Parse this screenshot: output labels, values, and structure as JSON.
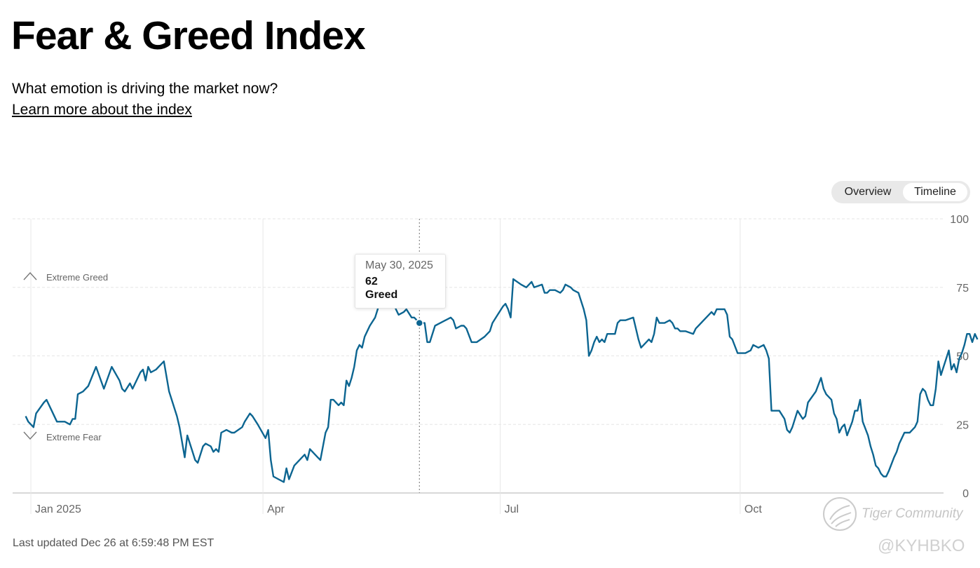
{
  "header": {
    "title": "Fear & Greed Index",
    "question": "What emotion is driving the market now?",
    "learn_link": "Learn more about the index"
  },
  "view_toggle": {
    "options": [
      "Overview",
      "Timeline"
    ],
    "selected": "Timeline"
  },
  "chart_data": {
    "type": "line",
    "title": "Fear & Greed Index",
    "xlabel": "",
    "ylabel": "",
    "ylim": [
      0,
      100
    ],
    "yticks": [
      0,
      25,
      50,
      75,
      100
    ],
    "x_range_days": [
      0,
      355
    ],
    "x_ticks": [
      {
        "label": "Jan 2025",
        "day": 0
      },
      {
        "label": "Apr",
        "day": 89
      },
      {
        "label": "Jul",
        "day": 180
      },
      {
        "label": "Oct",
        "day": 272
      }
    ],
    "zones": [
      {
        "label": "Extreme Greed",
        "icon": "chevron-up-icon"
      },
      {
        "label": "Extreme Fear",
        "icon": "chevron-down-icon"
      }
    ],
    "colors": {
      "line": "#0c6591",
      "grid": "#e6e6e6",
      "axis": "#cccccc",
      "text": "#666666"
    },
    "series": [
      {
        "name": "Fear & Greed Index",
        "points": [
          [
            -2,
            28
          ],
          [
            -1,
            26
          ],
          [
            1,
            24
          ],
          [
            2,
            29
          ],
          [
            5,
            33
          ],
          [
            6,
            34
          ],
          [
            8,
            30
          ],
          [
            10,
            26
          ],
          [
            13,
            26
          ],
          [
            15,
            25
          ],
          [
            16,
            27
          ],
          [
            17,
            27
          ],
          [
            18,
            36
          ],
          [
            20,
            37
          ],
          [
            22,
            39
          ],
          [
            25,
            46
          ],
          [
            28,
            38
          ],
          [
            31,
            46
          ],
          [
            34,
            41
          ],
          [
            35,
            38
          ],
          [
            36,
            37
          ],
          [
            38,
            40
          ],
          [
            39,
            38
          ],
          [
            42,
            44
          ],
          [
            43,
            45
          ],
          [
            44,
            41
          ],
          [
            45,
            46
          ],
          [
            46,
            44
          ],
          [
            48,
            45
          ],
          [
            49,
            46
          ],
          [
            51,
            48
          ],
          [
            53,
            37
          ],
          [
            56,
            28
          ],
          [
            57,
            24
          ],
          [
            59,
            13
          ],
          [
            60,
            21
          ],
          [
            62,
            15
          ],
          [
            63,
            12
          ],
          [
            64,
            11
          ],
          [
            66,
            17
          ],
          [
            67,
            18
          ],
          [
            69,
            17
          ],
          [
            70,
            15
          ],
          [
            71,
            16
          ],
          [
            72,
            15
          ],
          [
            73,
            22
          ],
          [
            75,
            23
          ],
          [
            77,
            22
          ],
          [
            78,
            22
          ],
          [
            81,
            24
          ],
          [
            82,
            26
          ],
          [
            84,
            29
          ],
          [
            85,
            28
          ],
          [
            87,
            25
          ],
          [
            90,
            20
          ],
          [
            91,
            23
          ],
          [
            92,
            12
          ],
          [
            93,
            6
          ],
          [
            95,
            5
          ],
          [
            97,
            4
          ],
          [
            98,
            9
          ],
          [
            99,
            5
          ],
          [
            101,
            10
          ],
          [
            104,
            13
          ],
          [
            105,
            14
          ],
          [
            106,
            12
          ],
          [
            107,
            16
          ],
          [
            110,
            13
          ],
          [
            111,
            12
          ],
          [
            113,
            22
          ],
          [
            114,
            24
          ],
          [
            115,
            34
          ],
          [
            116,
            34
          ],
          [
            117,
            33
          ],
          [
            118,
            32
          ],
          [
            119,
            33
          ],
          [
            120,
            32
          ],
          [
            121,
            41
          ],
          [
            122,
            39
          ],
          [
            123,
            42
          ],
          [
            124,
            46
          ],
          [
            125,
            52
          ],
          [
            126,
            54
          ],
          [
            127,
            53
          ],
          [
            128,
            57
          ],
          [
            129,
            59
          ],
          [
            130,
            61
          ],
          [
            132,
            64
          ],
          [
            133,
            67
          ],
          [
            134,
            72
          ],
          [
            136,
            73
          ],
          [
            138,
            70
          ],
          [
            139,
            70
          ],
          [
            140,
            67
          ],
          [
            141,
            65
          ],
          [
            143,
            66
          ],
          [
            144,
            67
          ],
          [
            146,
            64
          ],
          [
            147,
            64
          ],
          [
            148,
            63
          ],
          [
            149,
            62
          ],
          [
            151,
            62
          ],
          [
            152,
            55
          ],
          [
            153,
            55
          ],
          [
            155,
            61
          ],
          [
            157,
            62
          ],
          [
            159,
            63
          ],
          [
            161,
            64
          ],
          [
            162,
            63
          ],
          [
            163,
            60
          ],
          [
            165,
            61
          ],
          [
            166,
            61
          ],
          [
            167,
            60
          ],
          [
            169,
            55
          ],
          [
            171,
            55
          ],
          [
            174,
            57
          ],
          [
            176,
            59
          ],
          [
            177,
            62
          ],
          [
            179,
            65
          ],
          [
            181,
            68
          ],
          [
            182,
            69
          ],
          [
            183,
            67
          ],
          [
            184,
            64
          ],
          [
            185,
            78
          ],
          [
            188,
            76
          ],
          [
            190,
            75
          ],
          [
            192,
            77
          ],
          [
            193,
            75
          ],
          [
            196,
            76
          ],
          [
            197,
            73
          ],
          [
            198,
            73
          ],
          [
            199,
            74
          ],
          [
            201,
            74
          ],
          [
            203,
            73
          ],
          [
            204,
            74
          ],
          [
            205,
            76
          ],
          [
            207,
            75
          ],
          [
            208,
            74
          ],
          [
            210,
            73
          ],
          [
            212,
            67
          ],
          [
            213,
            63
          ],
          [
            214,
            50
          ],
          [
            215,
            52
          ],
          [
            216,
            55
          ],
          [
            217,
            57
          ],
          [
            218,
            55
          ],
          [
            219,
            56
          ],
          [
            220,
            55
          ],
          [
            221,
            58
          ],
          [
            223,
            58
          ],
          [
            224,
            58
          ],
          [
            225,
            62
          ],
          [
            226,
            63
          ],
          [
            228,
            63
          ],
          [
            231,
            64
          ],
          [
            232,
            60
          ],
          [
            233,
            56
          ],
          [
            234,
            53
          ],
          [
            236,
            55
          ],
          [
            237,
            56
          ],
          [
            238,
            55
          ],
          [
            239,
            58
          ],
          [
            240,
            64
          ],
          [
            241,
            62
          ],
          [
            243,
            62
          ],
          [
            245,
            63
          ],
          [
            246,
            62
          ],
          [
            247,
            60
          ],
          [
            248,
            60
          ],
          [
            249,
            59
          ],
          [
            251,
            59
          ],
          [
            254,
            58
          ],
          [
            255,
            60
          ],
          [
            256,
            61
          ],
          [
            258,
            63
          ],
          [
            260,
            65
          ],
          [
            261,
            66
          ],
          [
            262,
            65
          ],
          [
            263,
            67
          ],
          [
            265,
            67
          ],
          [
            266,
            67
          ],
          [
            267,
            65
          ],
          [
            268,
            57
          ],
          [
            269,
            56
          ],
          [
            271,
            51
          ],
          [
            272,
            51
          ],
          [
            274,
            51
          ],
          [
            276,
            52
          ],
          [
            277,
            54
          ],
          [
            279,
            53
          ],
          [
            281,
            54
          ],
          [
            282,
            52
          ],
          [
            283,
            49
          ],
          [
            284,
            30
          ],
          [
            285,
            30
          ],
          [
            287,
            30
          ],
          [
            289,
            27
          ],
          [
            290,
            23
          ],
          [
            291,
            22
          ],
          [
            292,
            24
          ],
          [
            294,
            30
          ],
          [
            296,
            27
          ],
          [
            297,
            28
          ],
          [
            298,
            33
          ],
          [
            301,
            37
          ],
          [
            303,
            42
          ],
          [
            304,
            38
          ],
          [
            305,
            36
          ],
          [
            307,
            34
          ],
          [
            308,
            29
          ],
          [
            309,
            27
          ],
          [
            310,
            22
          ],
          [
            311,
            24
          ],
          [
            312,
            25
          ],
          [
            313,
            21
          ],
          [
            315,
            26
          ],
          [
            316,
            30
          ],
          [
            317,
            30
          ],
          [
            318,
            34
          ],
          [
            319,
            26
          ],
          [
            321,
            21
          ],
          [
            322,
            17
          ],
          [
            323,
            14
          ],
          [
            324,
            10
          ],
          [
            325,
            9
          ],
          [
            326,
            7
          ],
          [
            327,
            6
          ],
          [
            328,
            6
          ],
          [
            329,
            8
          ],
          [
            331,
            13
          ],
          [
            332,
            15
          ],
          [
            333,
            18
          ],
          [
            334,
            20
          ],
          [
            335,
            22
          ],
          [
            337,
            22
          ],
          [
            338,
            23
          ],
          [
            339,
            24
          ],
          [
            340,
            26
          ],
          [
            341,
            36
          ],
          [
            342,
            38
          ],
          [
            343,
            37
          ],
          [
            344,
            34
          ],
          [
            345,
            32
          ],
          [
            346,
            32
          ],
          [
            347,
            38
          ],
          [
            348,
            48
          ],
          [
            349,
            43
          ],
          [
            350,
            46
          ],
          [
            351,
            49
          ],
          [
            352,
            52
          ],
          [
            353,
            45
          ],
          [
            354,
            47
          ],
          [
            355,
            44
          ],
          [
            356,
            49
          ],
          [
            357,
            51
          ],
          [
            358,
            54
          ],
          [
            359,
            58
          ],
          [
            360,
            58
          ],
          [
            361,
            55
          ],
          [
            362,
            58
          ],
          [
            363,
            56
          ]
        ]
      }
    ],
    "highlight": {
      "day": 149,
      "date": "May 30, 2025",
      "value": 62,
      "label": "Greed"
    }
  },
  "footer": {
    "last_updated": "Last updated Dec 26 at 6:59:48 PM EST"
  },
  "watermarks": {
    "community": "Tiger Community",
    "handle": "@KYHBKO"
  }
}
